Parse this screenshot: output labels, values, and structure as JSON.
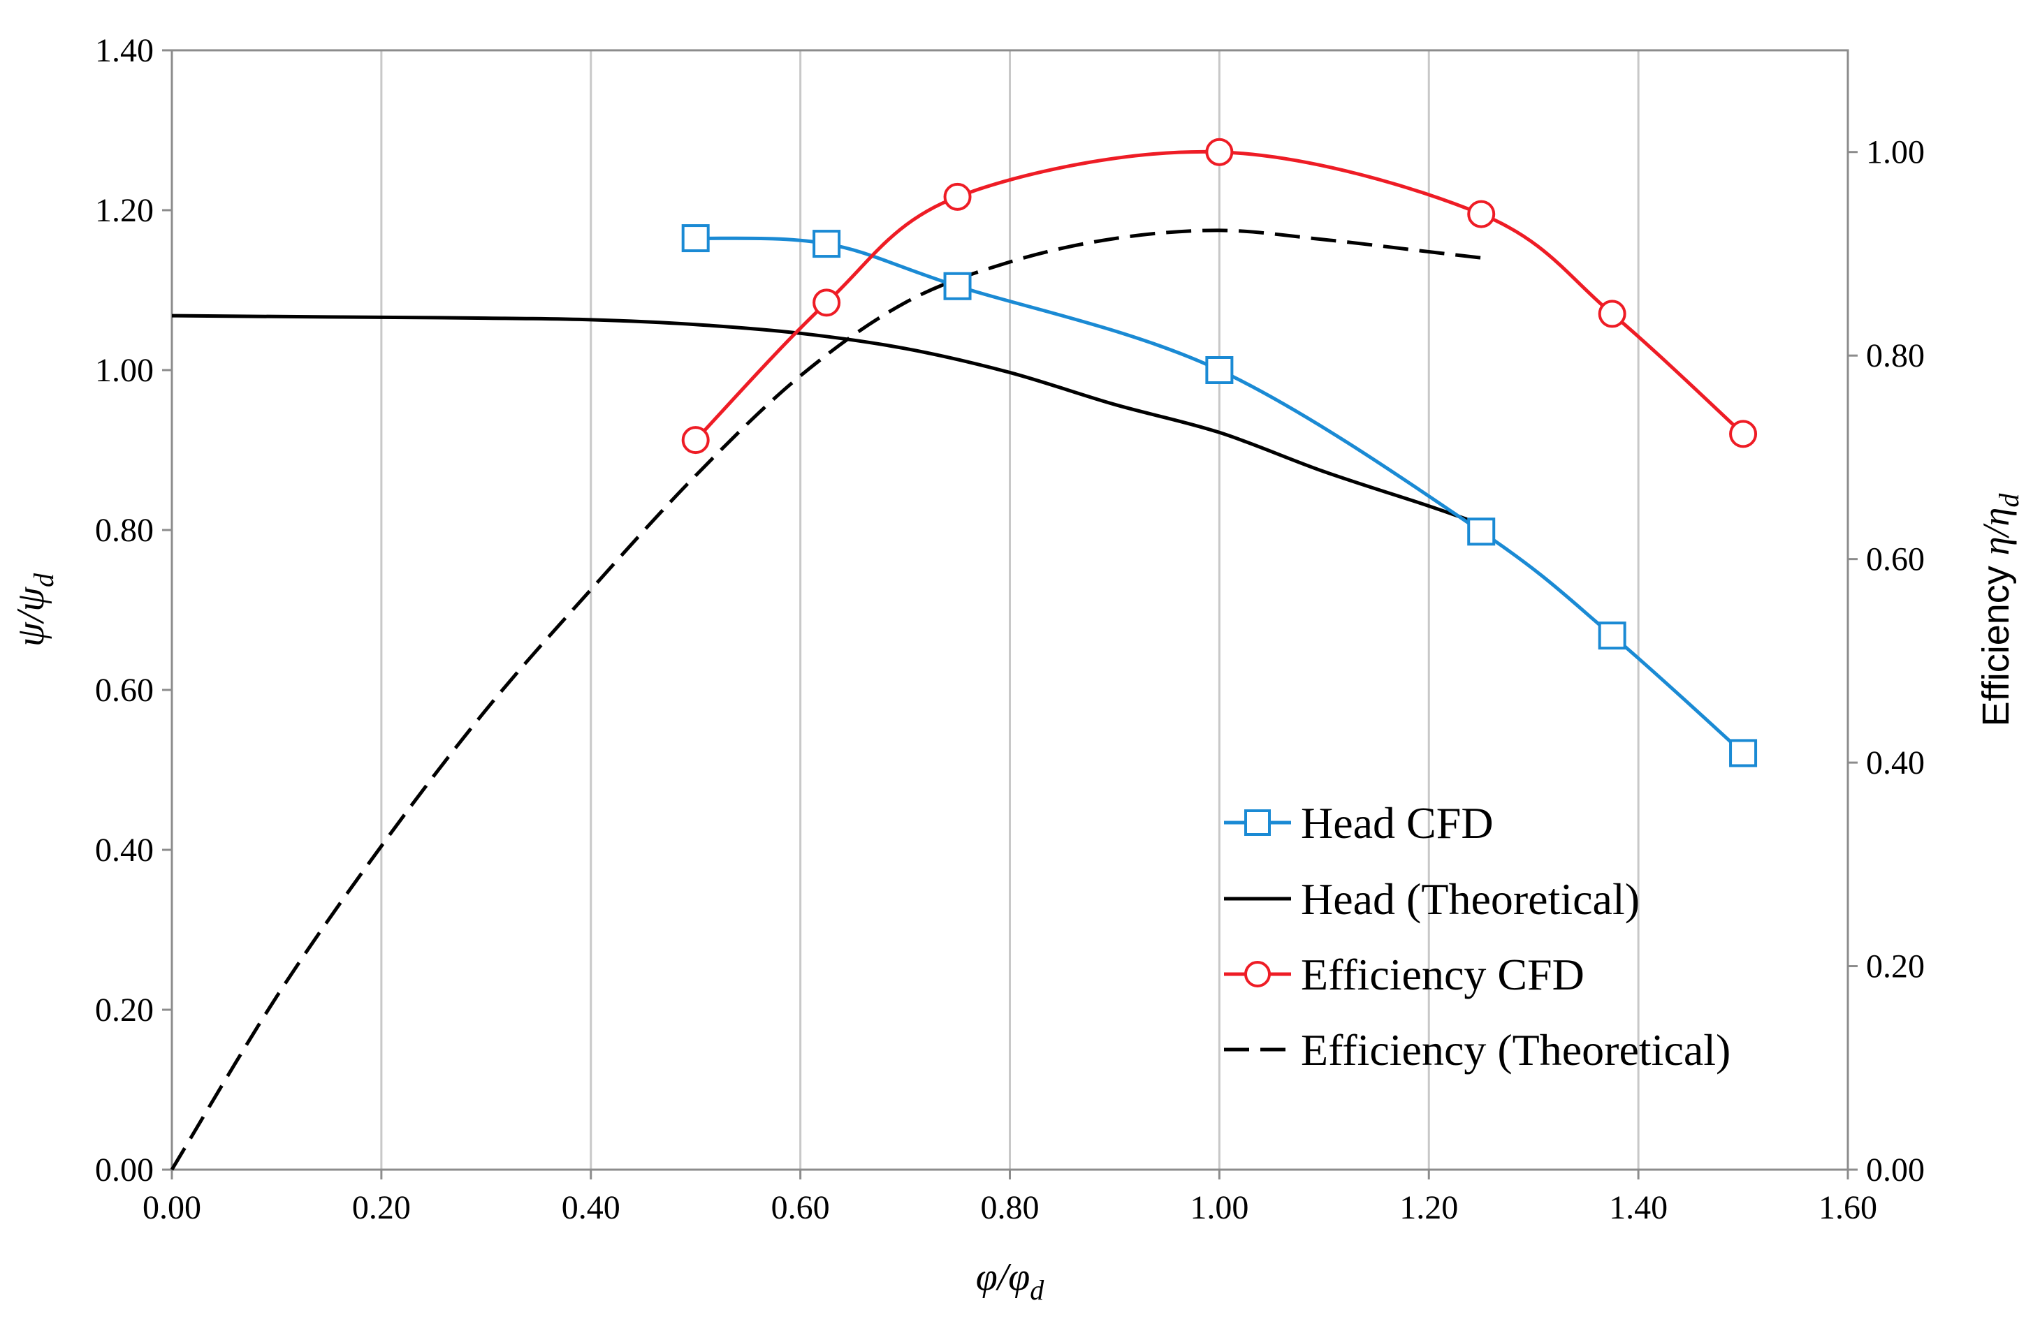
{
  "chart_data": {
    "type": "line",
    "title": "",
    "x_axis": {
      "label_main": "φ/φ",
      "label_sub": "d",
      "range": [
        0,
        1.6
      ],
      "ticks": [
        0,
        0.2,
        0.4,
        0.6,
        0.8,
        1.0,
        1.2,
        1.4,
        1.6
      ],
      "tick_labels": [
        "0.00",
        "0.20",
        "0.40",
        "0.60",
        "0.80",
        "1.00",
        "1.20",
        "1.40",
        "1.60"
      ]
    },
    "y_axis_left": {
      "label_main": "ψ/ψ",
      "label_sub": "d",
      "range": [
        0,
        1.4
      ],
      "ticks": [
        0,
        0.2,
        0.4,
        0.6,
        0.8,
        1.0,
        1.2,
        1.4
      ],
      "tick_labels": [
        "0.00",
        "0.20",
        "0.40",
        "0.60",
        "0.80",
        "1.00",
        "1.20",
        "1.40"
      ]
    },
    "y_axis_right": {
      "label_prefix": "Efficiency ",
      "label_main": "η/η",
      "label_sub": "d",
      "range": [
        0,
        1.1
      ],
      "ticks": [
        0,
        0.2,
        0.4,
        0.6,
        0.8,
        1.0
      ],
      "tick_labels": [
        "0.00",
        "0.20",
        "0.40",
        "0.60",
        "0.80",
        "1.00"
      ]
    },
    "grid": {
      "vertical": true,
      "horizontal": false
    },
    "legend_position": "lower-right",
    "series": [
      {
        "name": "Head CFD",
        "axis": "left",
        "color": "#1a8ad4",
        "line": "solid",
        "marker": "square",
        "x": [
          0.5,
          0.625,
          0.75,
          1.0,
          1.25,
          1.375,
          1.5
        ],
        "y": [
          1.165,
          1.158,
          1.105,
          1.0,
          0.798,
          0.668,
          0.521
        ]
      },
      {
        "name": "Head (Theoretical)",
        "axis": "left",
        "color": "#000000",
        "line": "solid",
        "marker": "none",
        "x": [
          0.0,
          0.1,
          0.2,
          0.3,
          0.4,
          0.5,
          0.6,
          0.7,
          0.8,
          0.9,
          1.0,
          1.1,
          1.2,
          1.25
        ],
        "y": [
          1.068,
          1.067,
          1.066,
          1.065,
          1.063,
          1.057,
          1.046,
          1.027,
          0.997,
          0.957,
          0.922,
          0.873,
          0.83,
          0.807
        ]
      },
      {
        "name": "Efficiency CFD",
        "axis": "right",
        "color": "#ee1c25",
        "line": "solid",
        "marker": "circle",
        "x": [
          0.5,
          0.625,
          0.75,
          1.0,
          1.25,
          1.375,
          1.5
        ],
        "y": [
          0.717,
          0.852,
          0.956,
          1.0,
          0.939,
          0.841,
          0.723
        ]
      },
      {
        "name": "Efficiency (Theoretical)",
        "axis": "right",
        "color": "#000000",
        "line": "dashed",
        "marker": "none",
        "x": [
          0.0,
          0.1,
          0.2,
          0.3,
          0.4,
          0.5,
          0.6,
          0.7,
          0.8,
          0.9,
          1.0,
          1.1,
          1.2,
          1.25
        ],
        "y": [
          0.0,
          0.17,
          0.318,
          0.452,
          0.57,
          0.682,
          0.78,
          0.852,
          0.892,
          0.915,
          0.923,
          0.914,
          0.902,
          0.896
        ]
      }
    ]
  }
}
